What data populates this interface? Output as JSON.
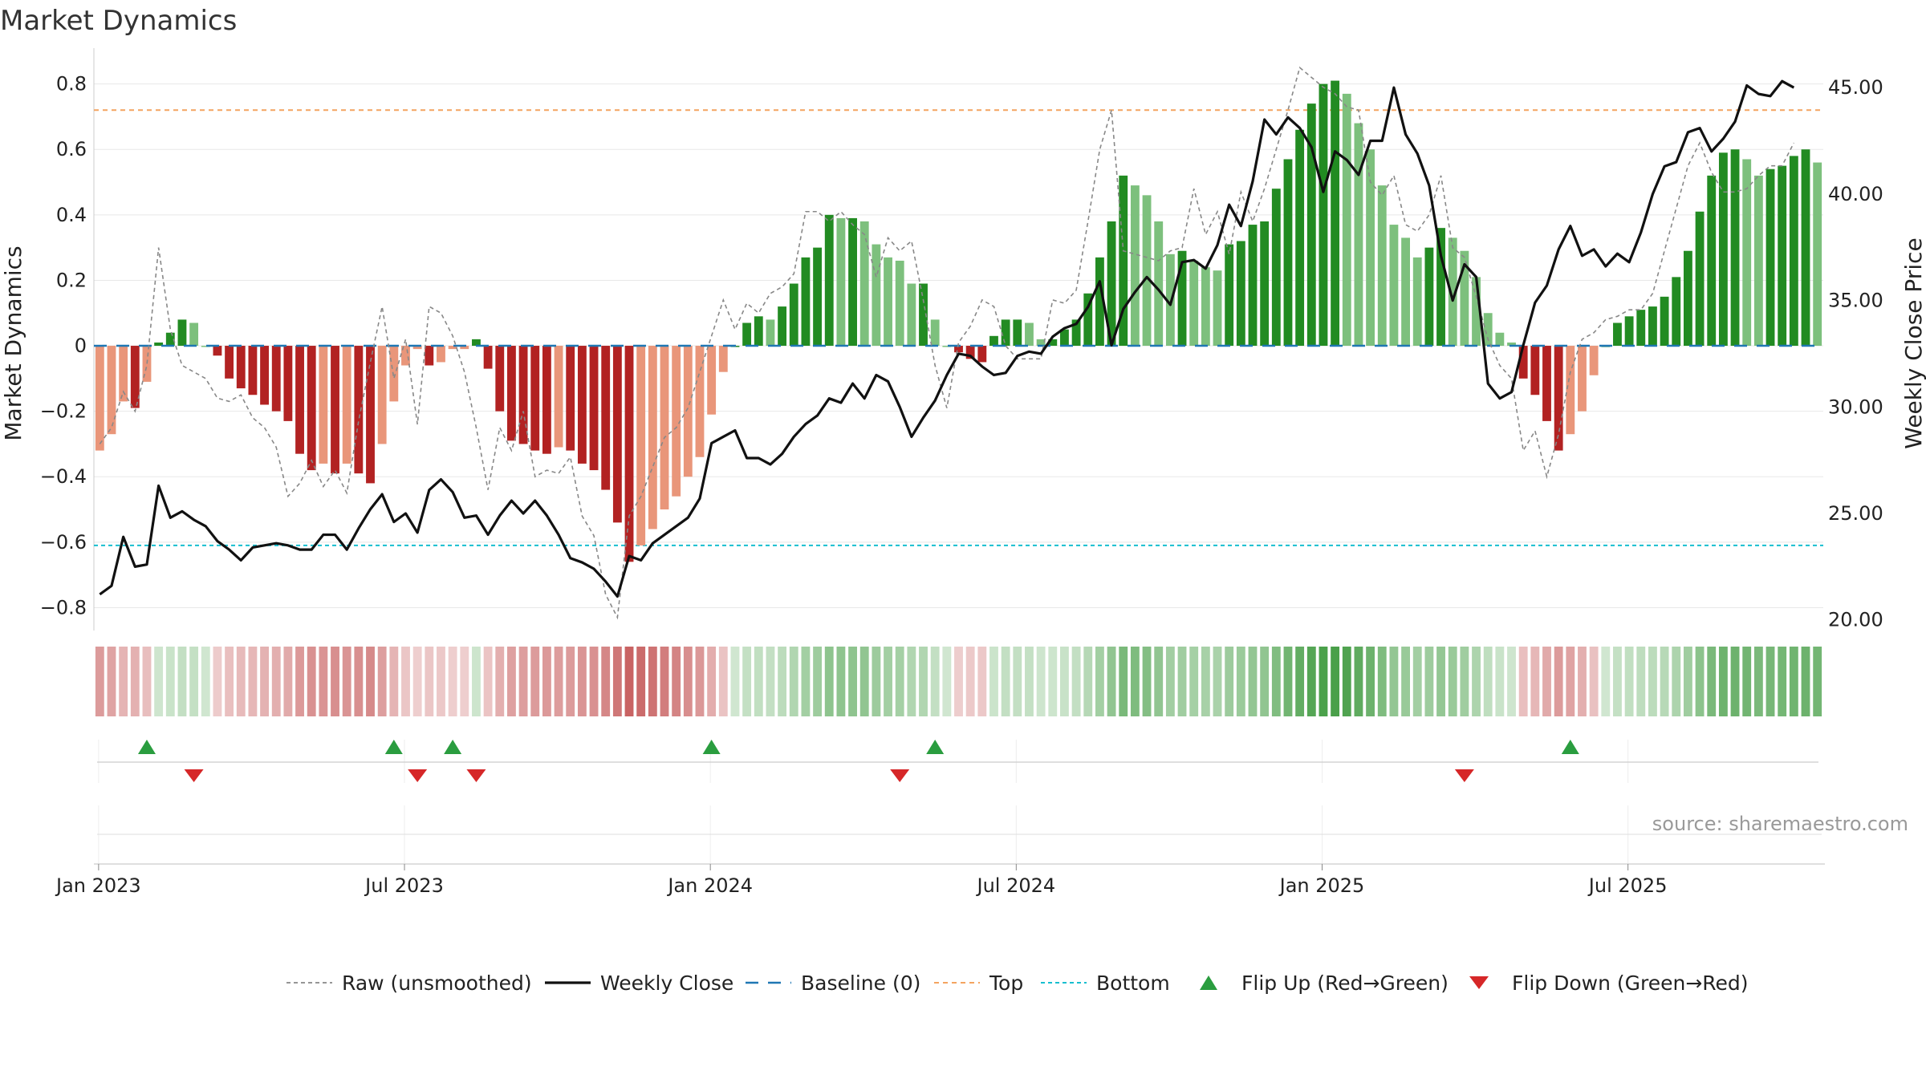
{
  "title": "Market Dynamics",
  "source": "source: sharemaestro.com",
  "chart_data": {
    "type": "bar",
    "ylabel_left": "Market Dynamics",
    "ylabel_right": "Weekly Close Price",
    "left_ticks": [
      "−0.8",
      "−0.6",
      "−0.4",
      "−0.2",
      "0",
      "0.2",
      "0.4",
      "0.6",
      "0.8"
    ],
    "left_tick_values": [
      -0.8,
      -0.6,
      -0.4,
      -0.2,
      0,
      0.2,
      0.4,
      0.6,
      0.8
    ],
    "right_ticks": [
      "20.00",
      "25.00",
      "30.00",
      "35.00",
      "40.00",
      "45.00"
    ],
    "right_tick_values": [
      20,
      25,
      30,
      35,
      40,
      45
    ],
    "ylim_left": [
      -0.87,
      0.88
    ],
    "ylim_right": [
      19.5,
      46.4
    ],
    "x_ticks": [
      "Jan 2023",
      "Jul 2023",
      "Jan 2024",
      "Jul 2024",
      "Jan 2025",
      "Jul 2025"
    ],
    "x_tick_weeks": [
      0,
      26,
      52,
      78,
      104,
      130
    ],
    "top_level": 0.72,
    "bottom_level": -0.61,
    "colors": {
      "strong_green": "#228b22",
      "light_green": "#7dc07d",
      "strong_red": "#b22222",
      "light_red": "#e9967a",
      "close": "#111111",
      "raw": "#888888",
      "baseline": "#1f77b4",
      "top": "#f4a460",
      "bottom": "#17becf",
      "flip_up": "#2a9d3f",
      "flip_down": "#d62728"
    },
    "bars": [
      -0.32,
      -0.27,
      -0.17,
      -0.19,
      -0.11,
      0.01,
      0.04,
      0.08,
      0.07,
      0,
      -0.03,
      -0.1,
      -0.13,
      -0.15,
      -0.18,
      -0.2,
      -0.23,
      -0.33,
      -0.38,
      -0.36,
      -0.39,
      -0.36,
      -0.39,
      -0.42,
      -0.3,
      -0.17,
      -0.06,
      -0.01,
      -0.06,
      -0.05,
      -0.01,
      -0.01,
      0.02,
      -0.07,
      -0.2,
      -0.29,
      -0.3,
      -0.32,
      -0.33,
      -0.31,
      -0.32,
      -0.36,
      -0.38,
      -0.44,
      -0.54,
      -0.66,
      -0.61,
      -0.56,
      -0.5,
      -0.46,
      -0.4,
      -0.34,
      -0.21,
      -0.08,
      0,
      0.07,
      0.09,
      0.08,
      0.12,
      0.19,
      0.27,
      0.3,
      0.4,
      0.39,
      0.39,
      0.38,
      0.31,
      0.27,
      0.26,
      0.19,
      0.19,
      0.08,
      0,
      -0.02,
      -0.04,
      -0.05,
      0.03,
      0.08,
      0.08,
      0.07,
      0.02,
      0.02,
      0.05,
      0.08,
      0.16,
      0.27,
      0.38,
      0.52,
      0.49,
      0.46,
      0.38,
      0.28,
      0.29,
      0.26,
      0.24,
      0.23,
      0.31,
      0.32,
      0.37,
      0.38,
      0.48,
      0.57,
      0.66,
      0.74,
      0.8,
      0.81,
      0.77,
      0.68,
      0.6,
      0.49,
      0.37,
      0.33,
      0.27,
      0.3,
      0.36,
      0.33,
      0.29,
      0.21,
      0.1,
      0.04,
      0.01,
      -0.1,
      -0.15,
      -0.23,
      -0.32,
      -0.27,
      -0.2,
      -0.09,
      0,
      0.07,
      0.09,
      0.11,
      0.12,
      0.15,
      0.21,
      0.29,
      0.41,
      0.52,
      0.59,
      0.6,
      0.57,
      0.52,
      0.54,
      0.55,
      0.58,
      0.6,
      0.56
    ],
    "raw": [
      -0.3,
      -0.25,
      -0.14,
      -0.2,
      -0.06,
      0.3,
      0.05,
      -0.06,
      -0.08,
      -0.1,
      -0.16,
      -0.17,
      -0.15,
      -0.22,
      -0.25,
      -0.31,
      -0.46,
      -0.42,
      -0.35,
      -0.43,
      -0.38,
      -0.45,
      -0.23,
      -0.05,
      0.12,
      -0.1,
      0.02,
      -0.24,
      0.12,
      0.1,
      0.03,
      -0.08,
      -0.25,
      -0.44,
      -0.25,
      -0.32,
      -0.2,
      -0.4,
      -0.38,
      -0.39,
      -0.34,
      -0.52,
      -0.58,
      -0.76,
      -0.83,
      -0.52,
      -0.46,
      -0.37,
      -0.28,
      -0.25,
      -0.19,
      -0.08,
      0.03,
      0.14,
      0.05,
      0.13,
      0.1,
      0.16,
      0.18,
      0.22,
      0.41,
      0.41,
      0.38,
      0.41,
      0.37,
      0.34,
      0.21,
      0.33,
      0.29,
      0.32,
      0.14,
      -0.06,
      -0.19,
      0.01,
      0.06,
      0.14,
      0.12,
      0,
      -0.04,
      -0.04,
      -0.04,
      0.14,
      0.13,
      0.17,
      0.38,
      0.6,
      0.72,
      0.29,
      0.28,
      0.27,
      0.26,
      0.29,
      0.3,
      0.48,
      0.34,
      0.41,
      0.28,
      0.47,
      0.38,
      0.48,
      0.6,
      0.72,
      0.85,
      0.82,
      0.79,
      0.77,
      0.73,
      0.72,
      0.5,
      0.46,
      0.52,
      0.37,
      0.35,
      0.4,
      0.52,
      0.3,
      0.27,
      0.15,
      0.02,
      -0.06,
      -0.1,
      -0.32,
      -0.26,
      -0.4,
      -0.27,
      -0.08,
      0.02,
      0.04,
      0.08,
      0.09,
      0.11,
      0.11,
      0.16,
      0.29,
      0.42,
      0.55,
      0.62,
      0.53,
      0.47,
      0.47,
      0.48,
      0.52,
      0.55,
      0.55,
      0.62
    ],
    "close": [
      21.2,
      21.6,
      23.9,
      22.5,
      22.6,
      26.3,
      24.8,
      25.1,
      24.7,
      24.4,
      23.7,
      23.3,
      22.8,
      23.4,
      23.5,
      23.6,
      23.5,
      23.3,
      23.3,
      24.0,
      24.0,
      23.3,
      24.3,
      25.2,
      25.9,
      24.6,
      25.0,
      24.1,
      26.1,
      26.6,
      26.0,
      24.8,
      24.9,
      24.0,
      24.9,
      25.6,
      25.0,
      25.6,
      24.9,
      24.0,
      22.9,
      22.7,
      22.4,
      21.8,
      21.1,
      23.0,
      22.8,
      23.6,
      24.0,
      24.4,
      24.8,
      25.7,
      28.3,
      28.6,
      28.9,
      27.6,
      27.6,
      27.3,
      27.8,
      28.6,
      29.2,
      29.6,
      30.4,
      30.2,
      31.1,
      30.4,
      31.5,
      31.2,
      30.0,
      28.6,
      29.5,
      30.3,
      31.5,
      32.5,
      32.4,
      31.9,
      31.5,
      31.6,
      32.4,
      32.6,
      32.5,
      33.3,
      33.7,
      33.9,
      34.7,
      35.9,
      32.9,
      34.6,
      35.4,
      36.1,
      35.5,
      34.8,
      36.8,
      36.9,
      36.5,
      37.6,
      39.5,
      38.5,
      40.6,
      43.5,
      42.8,
      43.6,
      43.1,
      42.2,
      40.1,
      42.0,
      41.6,
      40.9,
      42.5,
      42.5,
      45.0,
      42.8,
      41.9,
      40.4,
      37.1,
      35.0,
      36.7,
      36.1,
      31.1,
      30.4,
      30.7,
      32.9,
      34.9,
      35.7,
      37.4,
      38.5,
      37.1,
      37.4,
      36.6,
      37.2,
      36.8,
      38.2,
      40.0,
      41.3,
      41.5,
      42.9,
      43.1,
      42.0,
      42.6,
      43.4,
      45.1,
      44.7,
      44.6,
      45.3,
      45.0
    ],
    "flips_up": [
      4,
      25,
      30,
      52,
      71,
      125
    ],
    "flips_down": [
      8,
      27,
      32,
      68,
      116
    ],
    "legend": {
      "raw": "Raw (unsmoothed)",
      "close": "Weekly Close",
      "baseline": "Baseline (0)",
      "top": "Top",
      "bottom": "Bottom",
      "flip_up": "Flip Up (Red→Green)",
      "flip_down": "Flip Down (Green→Red)"
    }
  }
}
